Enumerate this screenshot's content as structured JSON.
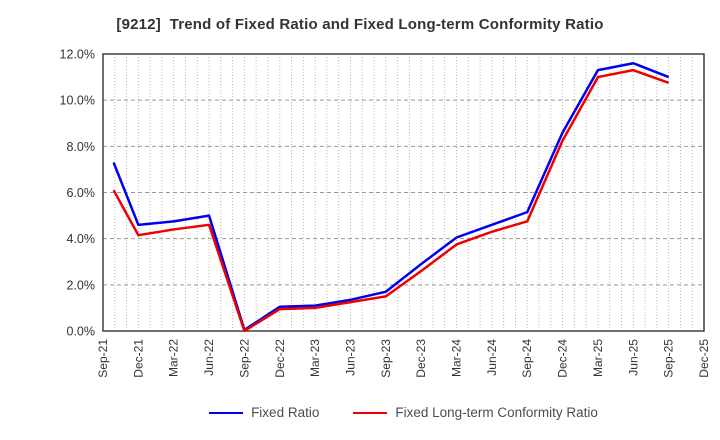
{
  "title": "[9212]  Trend of Fixed Ratio and Fixed Long-term Conformity Ratio",
  "chart_data": {
    "type": "line",
    "title": "[9212]  Trend of Fixed Ratio and Fixed Long-term Conformity Ratio",
    "x_tick_labels": [
      "Sep-21",
      "Dec-21",
      "Mar-22",
      "Jun-22",
      "Sep-22",
      "Dec-22",
      "Mar-23",
      "Jun-23",
      "Sep-23",
      "Dec-23",
      "Mar-24",
      "Jun-24",
      "Sep-24",
      "Dec-24",
      "Mar-25",
      "Jun-25",
      "Sep-25",
      "Dec-25"
    ],
    "x_quarter_positions": [
      0.3,
      1,
      2,
      3,
      4,
      5,
      6,
      7,
      8,
      9,
      10,
      11,
      12,
      13,
      14,
      15,
      16
    ],
    "series": [
      {
        "name": "Fixed Ratio",
        "color": "#0000ee",
        "values": [
          7.3,
          4.6,
          4.75,
          5.0,
          0.05,
          1.05,
          1.1,
          1.35,
          1.7,
          2.9,
          4.05,
          4.6,
          5.15,
          8.6,
          11.3,
          11.6,
          11.0
        ]
      },
      {
        "name": "Fixed Long-term Conformity Ratio",
        "color": "#ee0000",
        "values": [
          6.1,
          4.15,
          4.4,
          4.6,
          0.0,
          0.95,
          1.0,
          1.25,
          1.5,
          2.6,
          3.75,
          4.3,
          4.75,
          8.25,
          11.0,
          11.3,
          10.75
        ]
      }
    ],
    "ylim": [
      0,
      12
    ],
    "y_ticks": [
      0,
      2,
      4,
      6,
      8,
      10,
      12
    ],
    "y_tick_labels": [
      "0.0%",
      "2.0%",
      "4.0%",
      "6.0%",
      "8.0%",
      "10.0%",
      "12.0%"
    ],
    "xlabel": "",
    "ylabel": "",
    "grid": {
      "horizontal": "dashed",
      "vertical": "dotted-monthly",
      "months_per_quarter": 3
    },
    "legend_position": "bottom-center",
    "axis_color": "#333333",
    "grid_h_color": "#999999",
    "grid_v_color": "#b8b8b8",
    "tick_label_color": "#333333",
    "line_width": 2.5
  }
}
